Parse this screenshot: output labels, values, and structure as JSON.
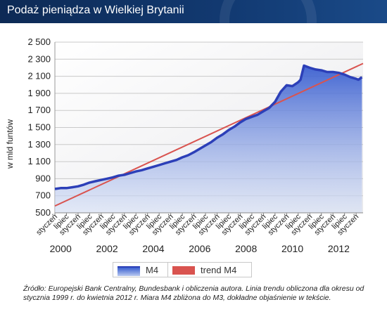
{
  "header": {
    "title": "Podaż pieniądza w Wielkiej Brytanii"
  },
  "chart_data": {
    "type": "area",
    "ylabel": "w mld funtów",
    "ylim": [
      500,
      2500
    ],
    "yticks": [
      500,
      700,
      900,
      1100,
      1300,
      1500,
      1700,
      1900,
      2100,
      2300,
      2500
    ],
    "ytick_labels": [
      "500",
      "700",
      "900",
      "1 100",
      "1 300",
      "1 500",
      "1 700",
      "1 900",
      "2 100",
      "2 300",
      "2 500"
    ],
    "xlim": [
      1999.0,
      2012.3
    ],
    "month_ticks": [
      {
        "x": 1999.0,
        "label": "styczeń"
      },
      {
        "x": 1999.5,
        "label": "lipiec"
      },
      {
        "x": 2000.0,
        "label": "styczeń"
      },
      {
        "x": 2000.5,
        "label": "lipiec"
      },
      {
        "x": 2001.0,
        "label": "styczeń"
      },
      {
        "x": 2001.5,
        "label": "lipiec"
      },
      {
        "x": 2002.0,
        "label": "styczeń"
      },
      {
        "x": 2002.5,
        "label": "lipiec"
      },
      {
        "x": 2003.0,
        "label": "styczeń"
      },
      {
        "x": 2003.5,
        "label": "lipiec"
      },
      {
        "x": 2004.0,
        "label": "styczeń"
      },
      {
        "x": 2004.5,
        "label": "lipiec"
      },
      {
        "x": 2005.0,
        "label": "styczeń"
      },
      {
        "x": 2005.5,
        "label": "lipiec"
      },
      {
        "x": 2006.0,
        "label": "styczeń"
      },
      {
        "x": 2006.5,
        "label": "lipiec"
      },
      {
        "x": 2007.0,
        "label": "styczeń"
      },
      {
        "x": 2007.5,
        "label": "lipiec"
      },
      {
        "x": 2008.0,
        "label": "styczeń"
      },
      {
        "x": 2008.5,
        "label": "lipiec"
      },
      {
        "x": 2009.0,
        "label": "styczeń"
      },
      {
        "x": 2009.5,
        "label": "lipiec"
      },
      {
        "x": 2010.0,
        "label": "styczeń"
      },
      {
        "x": 2010.5,
        "label": "lipiec"
      },
      {
        "x": 2011.0,
        "label": "styczeń"
      },
      {
        "x": 2011.5,
        "label": "lipiec"
      },
      {
        "x": 2012.0,
        "label": "styczeń"
      }
    ],
    "year_labels": [
      {
        "x": 1999.25,
        "label": "2000"
      },
      {
        "x": 2001.25,
        "label": "2002"
      },
      {
        "x": 2003.25,
        "label": "2004"
      },
      {
        "x": 2005.25,
        "label": "2006"
      },
      {
        "x": 2007.25,
        "label": "2008"
      },
      {
        "x": 2009.25,
        "label": "2010"
      },
      {
        "x": 2011.25,
        "label": "2012"
      }
    ],
    "series": [
      {
        "name": "M4",
        "x": [
          1999.0,
          1999.25,
          1999.5,
          1999.75,
          2000.0,
          2000.25,
          2000.5,
          2000.75,
          2001.0,
          2001.25,
          2001.5,
          2001.75,
          2002.0,
          2002.25,
          2002.5,
          2002.75,
          2003.0,
          2003.25,
          2003.5,
          2003.75,
          2004.0,
          2004.25,
          2004.5,
          2004.75,
          2005.0,
          2005.25,
          2005.5,
          2005.75,
          2006.0,
          2006.25,
          2006.5,
          2006.75,
          2007.0,
          2007.25,
          2007.5,
          2007.75,
          2008.0,
          2008.25,
          2008.5,
          2008.75,
          2009.0,
          2009.25,
          2009.5,
          2009.6,
          2009.75,
          2010.0,
          2010.25,
          2010.5,
          2010.75,
          2011.0,
          2011.25,
          2011.5,
          2011.75,
          2012.0,
          2012.1,
          2012.25
        ],
        "values": [
          780,
          790,
          790,
          800,
          810,
          830,
          855,
          870,
          885,
          900,
          915,
          935,
          945,
          965,
          985,
          1000,
          1020,
          1040,
          1060,
          1080,
          1100,
          1120,
          1150,
          1175,
          1210,
          1250,
          1290,
          1330,
          1380,
          1420,
          1470,
          1510,
          1560,
          1600,
          1625,
          1650,
          1690,
          1730,
          1800,
          1920,
          1995,
          1985,
          2030,
          2060,
          2225,
          2200,
          2180,
          2170,
          2150,
          2150,
          2140,
          2120,
          2090,
          2070,
          2060,
          2090
        ]
      },
      {
        "name": "trend M4",
        "x": [
          1999.0,
          2012.3
        ],
        "values": [
          580,
          2250
        ]
      }
    ],
    "colors": {
      "m4_line": "#2c3fb8",
      "m4_fill_top": "#3a5fd0",
      "m4_fill_bottom": "#d8e2f7",
      "trend": "#d9534f"
    },
    "grid": true,
    "legend_position": "bottom"
  },
  "legend": {
    "m4_label": "M4",
    "trend_label": "trend M4"
  },
  "source_text": "Źródło: Europejski Bank Centralny, Bundesbank i obliczenia autora. Linia trendu obliczona dla okresu od stycznia 1999 r. do kwietnia 2012 r.  Miara M4 zbliżona do M3, dokładne objaśnienie w tekście."
}
